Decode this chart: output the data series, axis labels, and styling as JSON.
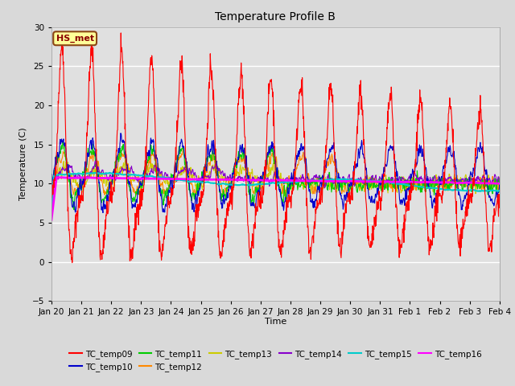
{
  "title": "Temperature Profile B",
  "xlabel": "Time",
  "ylabel": "Temperature (C)",
  "ylim": [
    -5,
    30
  ],
  "yticks": [
    -5,
    0,
    5,
    10,
    15,
    20,
    25,
    30
  ],
  "fig_bg_color": "#d9d9d9",
  "plot_bg_color": "#e0e0e0",
  "series_colors": {
    "TC_temp09": "#ff0000",
    "TC_temp10": "#0000cc",
    "TC_temp11": "#00cc00",
    "TC_temp12": "#ff8800",
    "TC_temp13": "#cccc00",
    "TC_temp14": "#8800cc",
    "TC_temp15": "#00cccc",
    "TC_temp16": "#ff00ff"
  },
  "legend_label": "HS_met",
  "legend_box_color": "#ffff99",
  "legend_box_edgecolor": "#8B4513",
  "xtick_labels": [
    "Jan 20",
    "Jan 21",
    "Jan 22",
    "Jan 23",
    "Jan 24",
    "Jan 25",
    "Jan 26",
    "Jan 27",
    "Jan 28",
    "Jan 29",
    "Jan 30",
    "Jan 31",
    "Feb 1",
    "Feb 2",
    "Feb 3",
    "Feb 4"
  ],
  "seed": 42
}
